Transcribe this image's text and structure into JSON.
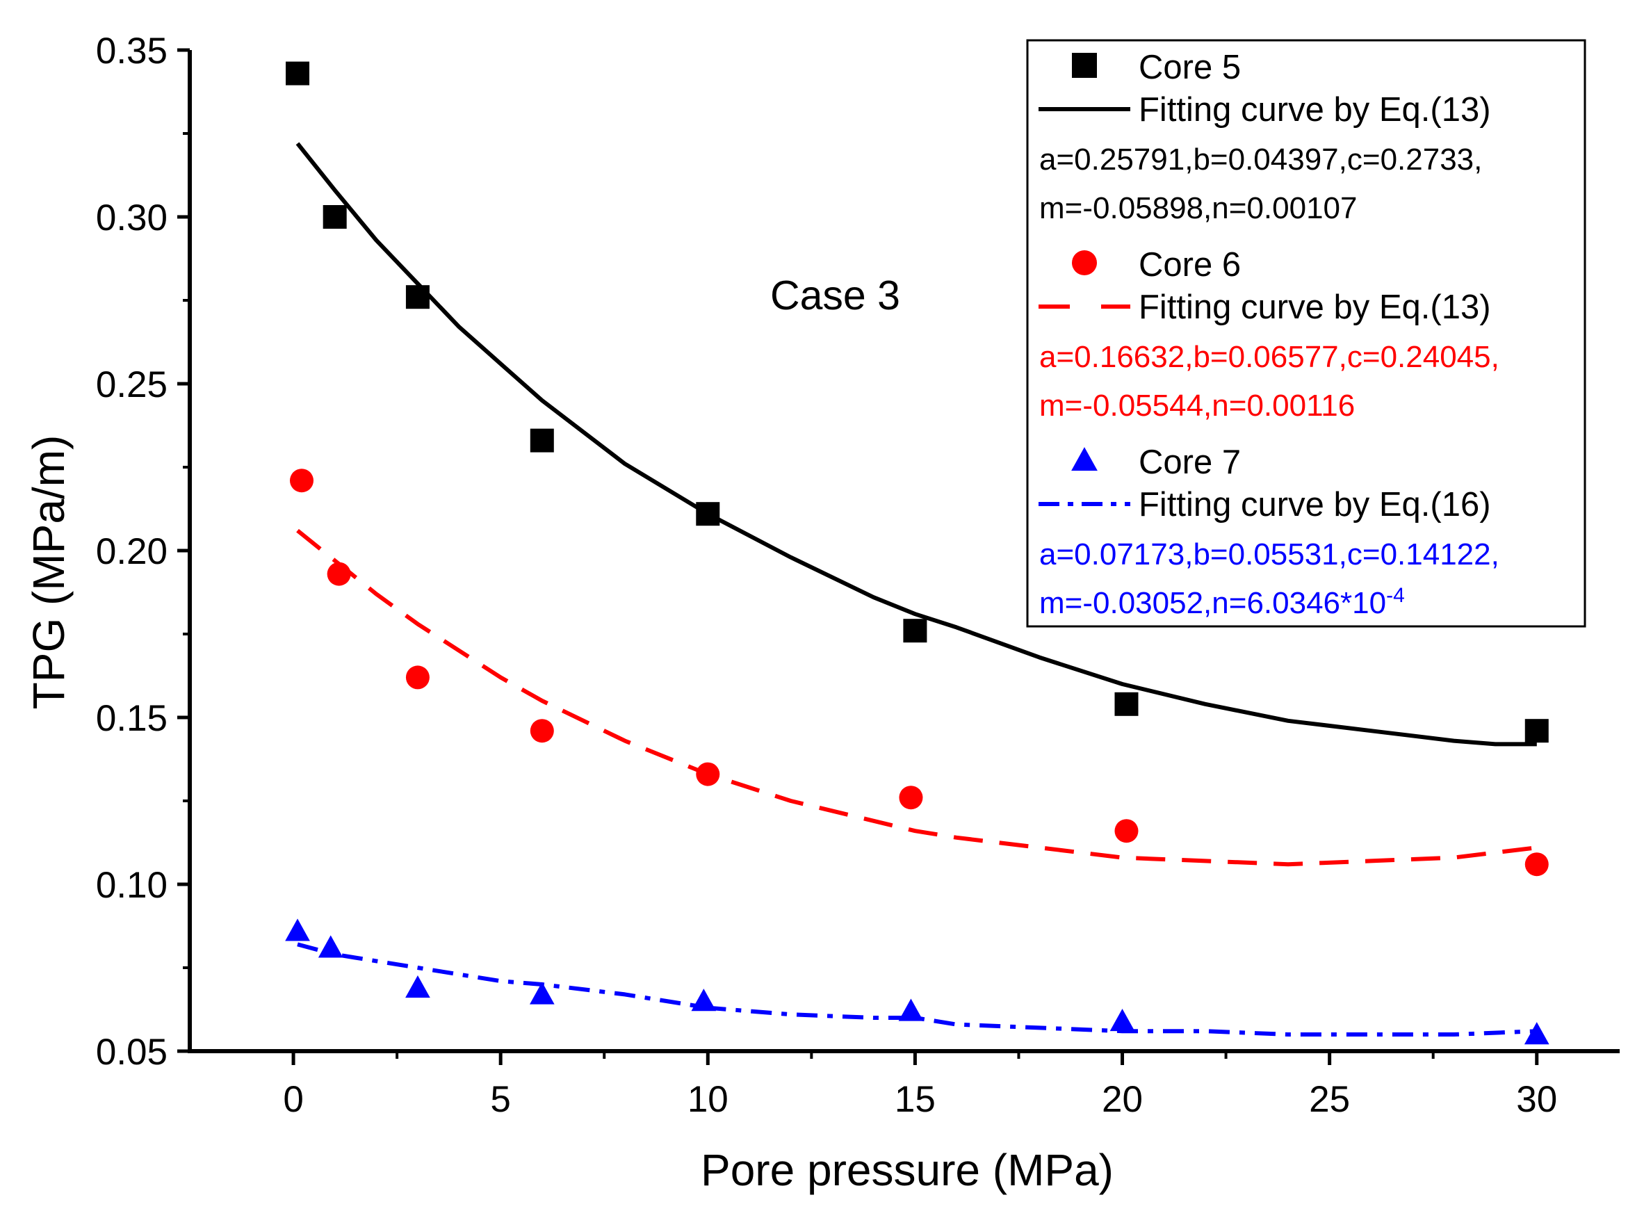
{
  "chart_data": {
    "type": "scatter",
    "xlabel": "Pore pressure (MPa)",
    "ylabel": "TPG (MPa/m)",
    "annotation": "Case 3",
    "xlim": [
      -2.5,
      32
    ],
    "ylim": [
      0.05,
      0.35
    ],
    "xticks": [
      0,
      5,
      10,
      15,
      20,
      25,
      30
    ],
    "yticks": [
      0.05,
      0.1,
      0.15,
      0.2,
      0.25,
      0.3,
      0.35
    ],
    "ytick_labels": [
      "0.05",
      "0.10",
      "0.15",
      "0.20",
      "0.25",
      "0.30",
      "0.35"
    ],
    "legend_position": "top-right",
    "series": [
      {
        "name": "Core 5",
        "kind": "points",
        "marker": "square",
        "color": "#000000",
        "x": [
          0.1,
          1.0,
          3.0,
          6.0,
          10.0,
          15.0,
          20.1,
          30.0
        ],
        "y": [
          0.343,
          0.3,
          0.276,
          0.233,
          0.211,
          0.176,
          0.154,
          0.146
        ]
      },
      {
        "name": "Fitting curve by Eq.(13)",
        "kind": "line",
        "dash": "solid",
        "color": "#000000",
        "params": [
          "a=0.25791,b=0.04397,c=0.2733,",
          "m=-0.05898,n=0.00107"
        ],
        "x": [
          0.1,
          1,
          2,
          3,
          4,
          5,
          6,
          8,
          10,
          12,
          14,
          15,
          16,
          18,
          20,
          22,
          24,
          26,
          28,
          29,
          30
        ],
        "y": [
          0.322,
          0.308,
          0.293,
          0.28,
          0.267,
          0.256,
          0.245,
          0.226,
          0.211,
          0.198,
          0.186,
          0.181,
          0.177,
          0.168,
          0.16,
          0.154,
          0.149,
          0.146,
          0.143,
          0.142,
          0.142
        ]
      },
      {
        "name": "Core 6",
        "kind": "points",
        "marker": "circle",
        "color": "#ff0000",
        "x": [
          0.2,
          1.1,
          3.0,
          6.0,
          10.0,
          14.9,
          20.1,
          30.0
        ],
        "y": [
          0.221,
          0.193,
          0.162,
          0.146,
          0.133,
          0.126,
          0.116,
          0.106
        ]
      },
      {
        "name": "Fitting curve by Eq.(13)",
        "kind": "line",
        "dash": "dash",
        "color": "#ff0000",
        "params": [
          "a=0.16632,b=0.06577,c=0.24045,",
          "m=-0.05544,n=0.00116"
        ],
        "x": [
          0.1,
          1,
          2,
          3,
          4,
          5,
          6,
          8,
          10,
          12,
          14,
          15,
          16,
          18,
          20,
          22,
          24,
          26,
          28,
          30
        ],
        "y": [
          0.206,
          0.197,
          0.187,
          0.178,
          0.17,
          0.162,
          0.155,
          0.143,
          0.133,
          0.125,
          0.119,
          0.116,
          0.114,
          0.111,
          0.108,
          0.107,
          0.106,
          0.107,
          0.108,
          0.111
        ]
      },
      {
        "name": "Core 7",
        "kind": "points",
        "marker": "triangle",
        "color": "#0000ff",
        "x": [
          0.1,
          0.9,
          3.0,
          6.0,
          9.9,
          14.9,
          20.0,
          30.0
        ],
        "y": [
          0.086,
          0.081,
          0.069,
          0.067,
          0.065,
          0.062,
          0.059,
          0.055
        ]
      },
      {
        "name": "Fitting curve by Eq.(16)",
        "kind": "line",
        "dash": "dashdot",
        "color": "#0000ff",
        "params": [
          "a=0.07173,b=0.05531,c=0.14122,",
          "m=-0.03052,n=6.0346*10",
          "-4"
        ],
        "x": [
          0.1,
          1,
          2,
          3,
          4,
          5,
          6,
          8,
          10,
          12,
          14,
          15,
          16,
          18,
          20,
          22,
          24,
          26,
          28,
          30
        ],
        "y": [
          0.082,
          0.079,
          0.077,
          0.075,
          0.073,
          0.071,
          0.07,
          0.067,
          0.063,
          0.061,
          0.06,
          0.06,
          0.058,
          0.057,
          0.056,
          0.056,
          0.055,
          0.055,
          0.055,
          0.056
        ]
      }
    ]
  }
}
